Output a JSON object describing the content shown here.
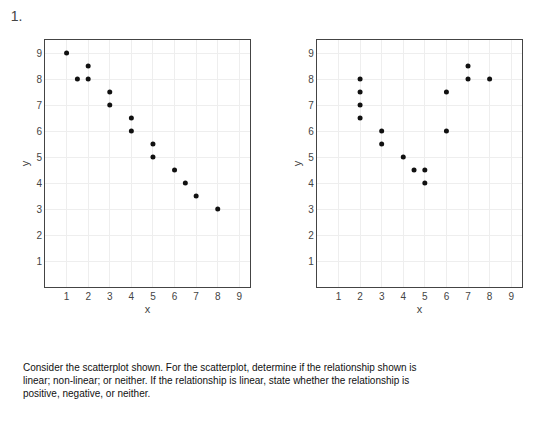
{
  "title": "1.",
  "annotations": [
    "Consider the scatterplot shown. For the scatterplot, determine if the relationship shown is",
    "linear; non-linear; or neither. If the relationship is linear, state whether the relationship is",
    "positive, negative, or neither."
  ],
  "chart_data": [
    {
      "type": "scatter",
      "xlabel": "x",
      "ylabel": "y",
      "x": [
        1,
        2,
        2,
        1.5,
        3,
        3,
        4,
        4,
        5,
        5,
        6,
        6.5,
        7,
        8
      ],
      "values": [
        9,
        8.5,
        8,
        8,
        7.5,
        7,
        6.5,
        6,
        5.5,
        5,
        4.5,
        4,
        3.5,
        3
      ],
      "color": "#111111",
      "xlim": [
        0,
        9.5
      ],
      "ylim": [
        0,
        9.5
      ],
      "xticks": [
        1,
        2,
        3,
        4,
        5,
        6,
        7,
        8,
        9
      ],
      "yticks": [
        1,
        2,
        3,
        4,
        5,
        6,
        7,
        8,
        9
      ],
      "grid": true
    },
    {
      "type": "scatter",
      "xlabel": "x",
      "ylabel": "y",
      "x": [
        2,
        2,
        2,
        2,
        3,
        3,
        4,
        4.5,
        5,
        5,
        6,
        7,
        7,
        8,
        6
      ],
      "values": [
        8,
        7.5,
        7,
        6.5,
        6,
        5.5,
        5,
        4.5,
        4,
        4.5,
        6,
        8,
        8.5,
        8,
        7.5
      ],
      "color": "#111111",
      "xlim": [
        0,
        9.5
      ],
      "ylim": [
        0,
        9.5
      ],
      "xticks": [
        1,
        2,
        3,
        4,
        5,
        6,
        7,
        8,
        9
      ],
      "yticks": [
        1,
        2,
        3,
        4,
        5,
        6,
        7,
        8,
        9
      ],
      "grid": true
    }
  ]
}
